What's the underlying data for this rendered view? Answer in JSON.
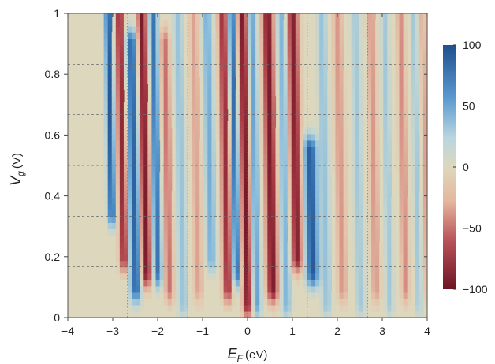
{
  "chart_data": {
    "type": "heatmap",
    "title": "",
    "xlabel": {
      "main": "E",
      "sub": "F",
      "unit": "(eV)"
    },
    "ylabel": {
      "main": "V",
      "sub": "g",
      "unit": "(V)"
    },
    "xlim": [
      -4.0,
      4.0
    ],
    "ylim": [
      0.0,
      1.0
    ],
    "x_ticks": [
      "-4",
      "-3",
      "-2",
      "-1",
      "0",
      "1",
      "2",
      "3",
      "4"
    ],
    "x_tick_values": [
      -4,
      -3,
      -2,
      -1,
      0,
      1,
      2,
      3,
      4
    ],
    "y_ticks": [
      "0",
      "0.2",
      "0.4",
      "0.6",
      "0.8",
      "1"
    ],
    "y_tick_values": [
      0,
      0.2,
      0.4,
      0.6,
      0.8,
      1.0
    ],
    "colorbar": {
      "range": [
        -100,
        100
      ],
      "ticks": [
        "100",
        "50",
        "0",
        "-50",
        "-100"
      ],
      "tick_values": [
        100,
        50,
        0,
        -50,
        -100
      ],
      "colors": {
        "negative": "#7a1625",
        "neutral": "#ddd7bd",
        "positive": "#245b9f"
      }
    },
    "reference_lines": {
      "horizontal_dashed_y": [
        0.1667,
        0.3333,
        0.5,
        0.6667,
        0.8333
      ],
      "vertical_dotted_x": [
        -2.67,
        -1.33,
        0.0,
        1.33,
        2.67
      ]
    },
    "features": [
      {
        "x": -3.1,
        "ymin": 0.35,
        "ymax": 1.0,
        "sign": 1,
        "amp": 95,
        "width": 0.08
      },
      {
        "x": -2.85,
        "ymin": 0.2,
        "ymax": 1.0,
        "sign": -1,
        "amp": 85,
        "width": 0.09
      },
      {
        "x": -2.6,
        "ymin": 0.1,
        "ymax": 0.9,
        "sign": 1,
        "amp": 90,
        "width": 0.12
      },
      {
        "x": -2.35,
        "ymin": 0.15,
        "ymax": 1.0,
        "sign": -1,
        "amp": 95,
        "width": 0.11
      },
      {
        "x": -2.1,
        "ymin": 0.15,
        "ymax": 1.0,
        "sign": 1,
        "amp": 80,
        "width": 0.09
      },
      {
        "x": -1.85,
        "ymin": 0.1,
        "ymax": 0.9,
        "sign": -1,
        "amp": 50,
        "width": 0.09
      },
      {
        "x": -1.55,
        "ymin": 0.05,
        "ymax": 1.0,
        "sign": 1,
        "amp": 35,
        "width": 0.1
      },
      {
        "x": -1.2,
        "ymin": 0.1,
        "ymax": 1.0,
        "sign": -1,
        "amp": 30,
        "width": 0.1
      },
      {
        "x": -0.9,
        "ymin": 0.2,
        "ymax": 1.0,
        "sign": 1,
        "amp": 50,
        "width": 0.1
      },
      {
        "x": -0.55,
        "ymin": 0.1,
        "ymax": 1.0,
        "sign": -1,
        "amp": 80,
        "width": 0.1
      },
      {
        "x": -0.35,
        "ymin": 0.15,
        "ymax": 1.0,
        "sign": 1,
        "amp": 85,
        "width": 0.08
      },
      {
        "x": -0.12,
        "ymin": 0.05,
        "ymax": 1.0,
        "sign": -1,
        "amp": 95,
        "width": 0.1
      },
      {
        "x": 0.1,
        "ymin": 0.05,
        "ymax": 1.0,
        "sign": 1,
        "amp": 55,
        "width": 0.09
      },
      {
        "x": 0.45,
        "ymin": 0.1,
        "ymax": 1.0,
        "sign": -1,
        "amp": 95,
        "width": 0.12
      },
      {
        "x": 0.75,
        "ymin": 0.05,
        "ymax": 1.0,
        "sign": 1,
        "amp": 45,
        "width": 0.1
      },
      {
        "x": 1.0,
        "ymin": 0.2,
        "ymax": 1.0,
        "sign": -1,
        "amp": 90,
        "width": 0.12
      },
      {
        "x": 1.35,
        "ymin": 0.15,
        "ymax": 0.55,
        "sign": 1,
        "amp": 95,
        "width": 0.14
      },
      {
        "x": 1.65,
        "ymin": 0.05,
        "ymax": 1.0,
        "sign": 1,
        "amp": 35,
        "width": 0.1
      },
      {
        "x": 2.0,
        "ymin": 0.1,
        "ymax": 1.0,
        "sign": -1,
        "amp": 35,
        "width": 0.1
      },
      {
        "x": 2.4,
        "ymin": 0.05,
        "ymax": 1.0,
        "sign": 1,
        "amp": 30,
        "width": 0.1
      },
      {
        "x": 2.75,
        "ymin": 0.1,
        "ymax": 1.0,
        "sign": -1,
        "amp": 35,
        "width": 0.09
      },
      {
        "x": 3.05,
        "ymin": 0.05,
        "ymax": 1.0,
        "sign": 1,
        "amp": 30,
        "width": 0.08
      },
      {
        "x": 3.4,
        "ymin": 0.1,
        "ymax": 1.0,
        "sign": -1,
        "amp": 40,
        "width": 0.08
      },
      {
        "x": 3.7,
        "ymin": 0.05,
        "ymax": 1.0,
        "sign": 1,
        "amp": 30,
        "width": 0.07
      },
      {
        "x": 3.9,
        "ymin": 0.1,
        "ymax": 1.0,
        "sign": -1,
        "amp": 30,
        "width": 0.06
      }
    ]
  }
}
